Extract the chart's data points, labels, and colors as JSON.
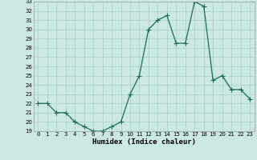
{
  "x": [
    0,
    1,
    2,
    3,
    4,
    5,
    6,
    7,
    8,
    9,
    10,
    11,
    12,
    13,
    14,
    15,
    16,
    17,
    18,
    19,
    20,
    21,
    22,
    23
  ],
  "y": [
    22,
    22,
    21,
    21,
    20,
    19.5,
    19,
    19,
    19.5,
    20,
    23,
    25,
    30,
    31,
    31.5,
    28.5,
    28.5,
    33,
    32.5,
    24.5,
    25,
    23.5,
    23.5,
    22.5
  ],
  "xlabel": "Humidex (Indice chaleur)",
  "ylim": [
    19,
    33
  ],
  "xlim": [
    -0.5,
    23.5
  ],
  "yticks": [
    19,
    20,
    21,
    22,
    23,
    24,
    25,
    26,
    27,
    28,
    29,
    30,
    31,
    32,
    33
  ],
  "xticks": [
    0,
    1,
    2,
    3,
    4,
    5,
    6,
    7,
    8,
    9,
    10,
    11,
    12,
    13,
    14,
    15,
    16,
    17,
    18,
    19,
    20,
    21,
    22,
    23
  ],
  "line_color": "#1a6b5a",
  "bg_color": "#cce8e4",
  "grid_color": "#aacfcc",
  "marker": "+",
  "marker_size": 4,
  "line_width": 0.9,
  "tick_fontsize": 5,
  "xlabel_fontsize": 6.5,
  "xlabel_fontweight": "bold"
}
